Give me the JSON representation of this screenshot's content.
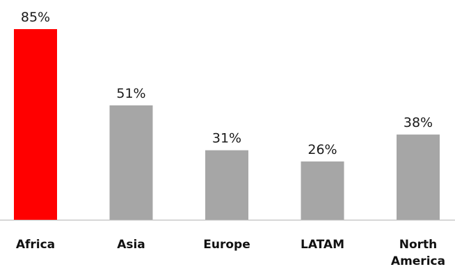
{
  "chart_data": {
    "type": "bar",
    "categories": [
      "Africa",
      "Asia",
      "Europe",
      "LATAM",
      "North America"
    ],
    "category_lines": [
      [
        "Africa"
      ],
      [
        "Asia"
      ],
      [
        "Europe"
      ],
      [
        "LATAM"
      ],
      [
        "North",
        "America"
      ]
    ],
    "values": [
      85,
      51,
      31,
      26,
      38
    ],
    "value_labels": [
      "85%",
      "51%",
      "31%",
      "26%",
      "38%"
    ],
    "unit": "%",
    "highlight_index": 0,
    "colors": {
      "highlight": "#ff0000",
      "default": "#a6a6a6",
      "axis": "#c8c8c8"
    },
    "title": "",
    "xlabel": "",
    "ylabel": "",
    "ylim": [
      0,
      85
    ],
    "grid": false,
    "legend": "none"
  }
}
